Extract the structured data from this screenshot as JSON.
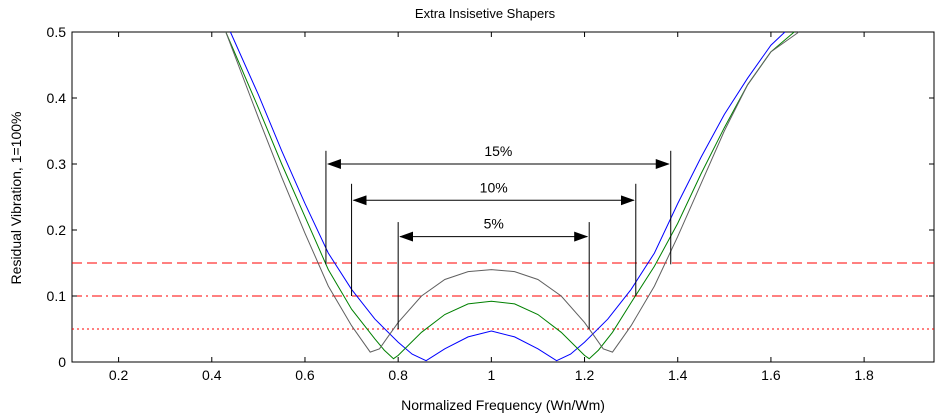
{
  "chart_data": {
    "type": "line",
    "title": "Extra Insisetive Shapers",
    "xlabel": "Normalized Frequency (Wn/Wm)",
    "ylabel": "Residual Vibration, 1=100%",
    "xlim": [
      0.1,
      1.95
    ],
    "ylim": [
      0,
      0.5
    ],
    "xticks": [
      0.2,
      0.4,
      0.6,
      0.8,
      1,
      1.2,
      1.4,
      1.6,
      1.8
    ],
    "xtick_labels": [
      "0.2",
      "0.4",
      "0.6",
      "0.8",
      "1",
      "1.2",
      "1.4",
      "1.6",
      "1.8"
    ],
    "yticks": [
      0,
      0.1,
      0.2,
      0.3,
      0.4,
      0.5
    ],
    "ytick_labels": [
      "0",
      "0.1",
      "0.2",
      "0.3",
      "0.4",
      "0.5"
    ],
    "grid": false,
    "series": [
      {
        "color": "#0000ff",
        "x": [
          0.44,
          0.5,
          0.55,
          0.6,
          0.65,
          0.7,
          0.75,
          0.8,
          0.83,
          0.86,
          0.9,
          0.95,
          1.0,
          1.05,
          1.1,
          1.14,
          1.17,
          1.2,
          1.25,
          1.3,
          1.35,
          1.4,
          1.45,
          1.5,
          1.55,
          1.6,
          1.63
        ],
        "y": [
          0.5,
          0.405,
          0.32,
          0.24,
          0.165,
          0.11,
          0.065,
          0.03,
          0.012,
          0.002,
          0.02,
          0.038,
          0.047,
          0.038,
          0.02,
          0.002,
          0.012,
          0.03,
          0.065,
          0.11,
          0.165,
          0.24,
          0.31,
          0.375,
          0.43,
          0.48,
          0.5
        ]
      },
      {
        "color": "#008000",
        "x": [
          0.43,
          0.5,
          0.55,
          0.6,
          0.65,
          0.7,
          0.75,
          0.77,
          0.79,
          0.8,
          0.85,
          0.9,
          0.95,
          1.0,
          1.05,
          1.1,
          1.15,
          1.2,
          1.21,
          1.23,
          1.26,
          1.3,
          1.35,
          1.4,
          1.45,
          1.5,
          1.55,
          1.6,
          1.65
        ],
        "y": [
          0.5,
          0.385,
          0.3,
          0.22,
          0.14,
          0.08,
          0.035,
          0.018,
          0.005,
          0.01,
          0.045,
          0.072,
          0.088,
          0.092,
          0.088,
          0.072,
          0.045,
          0.01,
          0.005,
          0.018,
          0.045,
          0.09,
          0.145,
          0.21,
          0.285,
          0.355,
          0.42,
          0.47,
          0.5
        ]
      },
      {
        "color": "#606060",
        "x": [
          0.43,
          0.5,
          0.55,
          0.6,
          0.65,
          0.7,
          0.72,
          0.74,
          0.76,
          0.78,
          0.8,
          0.85,
          0.9,
          0.95,
          1.0,
          1.05,
          1.1,
          1.15,
          1.2,
          1.22,
          1.24,
          1.26,
          1.28,
          1.3,
          1.35,
          1.4,
          1.45,
          1.5,
          1.55,
          1.6,
          1.66
        ],
        "y": [
          0.5,
          0.37,
          0.28,
          0.195,
          0.115,
          0.055,
          0.035,
          0.015,
          0.02,
          0.04,
          0.06,
          0.1,
          0.125,
          0.137,
          0.14,
          0.137,
          0.125,
          0.1,
          0.06,
          0.04,
          0.02,
          0.015,
          0.035,
          0.055,
          0.115,
          0.19,
          0.27,
          0.35,
          0.42,
          0.47,
          0.5
        ]
      }
    ],
    "reference_lines": [
      {
        "y": 0.15,
        "style": "dashed",
        "color": "#ff0000"
      },
      {
        "y": 0.1,
        "style": "dashdot",
        "color": "#ff0000"
      },
      {
        "y": 0.05,
        "style": "dotted",
        "color": "#ff0000"
      }
    ],
    "annotations": [
      {
        "label": "15%",
        "x_start": 0.645,
        "x_end": 1.385,
        "arrow_y": 0.3,
        "bar_top": 0.32,
        "bar_bottom": 0.148
      },
      {
        "label": "10%",
        "x_start": 0.7,
        "x_end": 1.31,
        "arrow_y": 0.245,
        "bar_top": 0.27,
        "bar_bottom": 0.1
      },
      {
        "label": "5%",
        "x_start": 0.8,
        "x_end": 1.21,
        "arrow_y": 0.19,
        "bar_top": 0.212,
        "bar_bottom": 0.05
      }
    ]
  }
}
